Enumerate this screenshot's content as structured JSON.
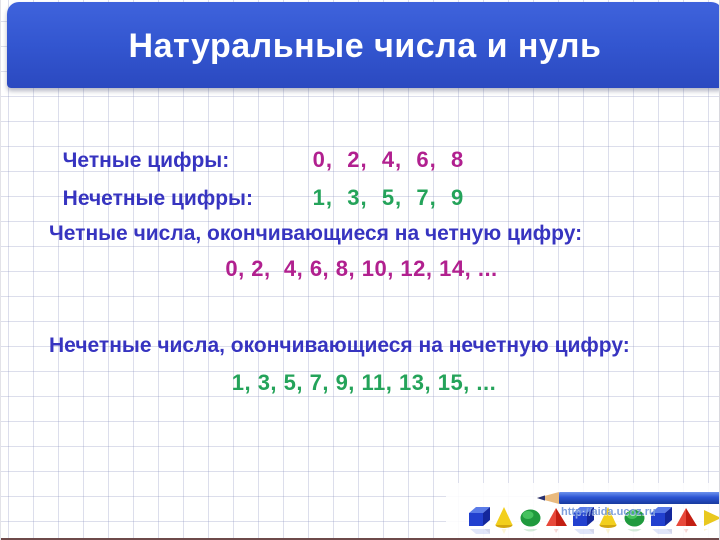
{
  "title": "Натуральные числа и нуль",
  "digit_rows": [
    {
      "label": "Четные цифры:",
      "digits": "0,  2,  4,  6,  8"
    },
    {
      "label": "Нечетные цифры:",
      "digits": "1,  3,  5,  7,  9"
    }
  ],
  "sections": [
    {
      "heading": "Четные числа, окончивающиеся на четную цифру:",
      "sequence": "0, 2,  4, 6, 8, 10, 12, 14, ..."
    },
    {
      "heading": "Нечетные числа, окончивающиеся на нечетную цифру:",
      "sequence": "1, 3, 5, 7, 9, 11, 13, 15, ..."
    }
  ],
  "footer": {
    "watermark": "http://aida.ucoz.ru",
    "decor_shapes": [
      "blue-cube",
      "yellow-cone",
      "green-sphere",
      "red-pyramid",
      "blue-cube",
      "yellow-cone",
      "green-sphere",
      "blue-cube",
      "red-pyramid",
      "yellow-arrow"
    ]
  },
  "colors": {
    "banner": "#3356d0",
    "title_text": "#ffffff",
    "label": "#3734c0",
    "even_sequence": "#b1208f",
    "odd_sequence": "#24a35a"
  }
}
